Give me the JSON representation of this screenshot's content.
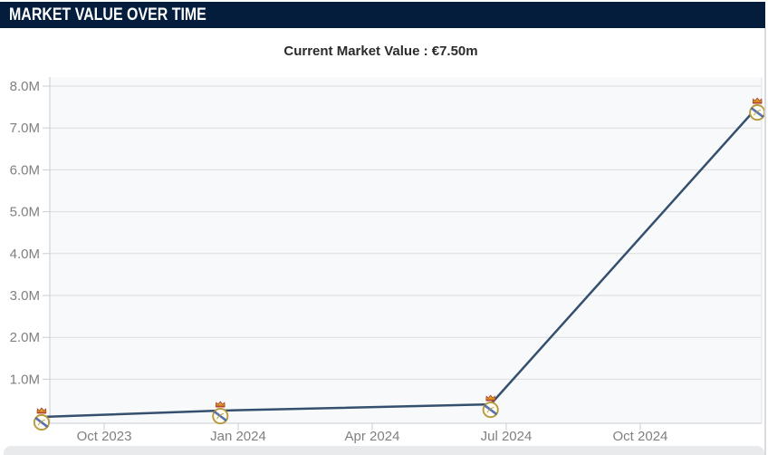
{
  "header": {
    "title": "MARKET VALUE OVER TIME"
  },
  "subtitle": {
    "text": "Current Market Value : €7.50m"
  },
  "chart_data": {
    "type": "line",
    "title": "Market Value Over Time",
    "current_market_value": "€7.50m",
    "unit": "EUR millions",
    "xlabel": "",
    "ylabel": "",
    "ylim": [
      0,
      8.4
    ],
    "grid": "horizontal",
    "legend": "none",
    "marker_icon": "real-madrid-crest-icon",
    "x_ticks": [
      {
        "label": "Oct 2023",
        "m": 0
      },
      {
        "label": "Jan 2024",
        "m": 3
      },
      {
        "label": "Apr 2024",
        "m": 6
      },
      {
        "label": "Jul 2024",
        "m": 9
      },
      {
        "label": "Oct 2024",
        "m": 12
      }
    ],
    "y_ticks": [
      {
        "label": "8.0M",
        "value": 8
      },
      {
        "label": "7.0M",
        "value": 7
      },
      {
        "label": "6.0M",
        "value": 6
      },
      {
        "label": "5.0M",
        "value": 5
      },
      {
        "label": "4.0M",
        "value": 4
      },
      {
        "label": "3.0M",
        "value": 3
      },
      {
        "label": "2.0M",
        "value": 2
      },
      {
        "label": "1.0M",
        "value": 1
      }
    ],
    "series": [
      {
        "name": "Market value",
        "points": [
          {
            "date": "Aug 2023",
            "m": -1.4,
            "value": 0.1
          },
          {
            "date": "Dec 2023",
            "m": 2.6,
            "value": 0.25
          },
          {
            "date": "Jun 2024",
            "m": 8.65,
            "value": 0.4
          },
          {
            "date": "Dec 2024",
            "m": 14.62,
            "value": 7.5
          }
        ]
      }
    ],
    "colors": {
      "line": "#35506f",
      "grid": "#dcdcdc",
      "axis": "#c9cccf",
      "tick_label": "#808080",
      "plot_bg": "#f8f9fa",
      "right_border": "#dde3ec",
      "header_bg": "#041d3c",
      "header_text": "#ffffff",
      "subtitle_text": "#2b2b2b",
      "crest_gold": "#b79a3c",
      "crest_blue": "#3a5aa8",
      "crest_red": "#b5432e",
      "crest_fill": "#fdfbf2"
    }
  }
}
